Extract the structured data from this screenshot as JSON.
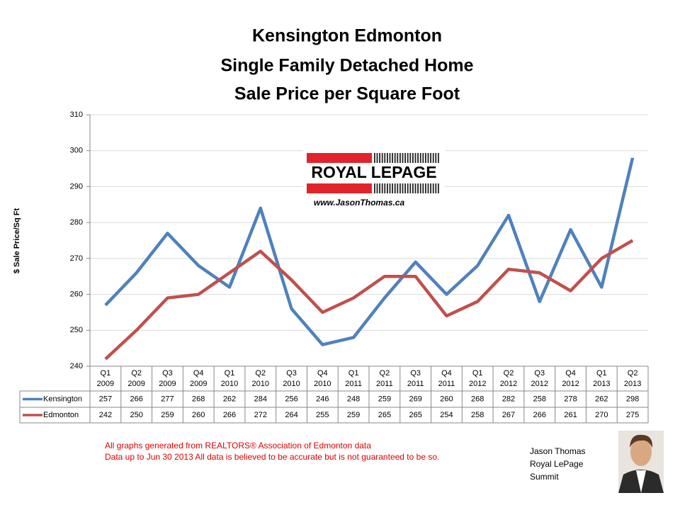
{
  "chart_data": {
    "type": "line",
    "title": [
      "Kensington Edmonton",
      "Single Family Detached Home",
      "Sale Price per Square Foot"
    ],
    "y_label": "$ Sale Price/Sq Ft",
    "categories": [
      [
        "Q1",
        "2009"
      ],
      [
        "Q2",
        "2009"
      ],
      [
        "Q3",
        "2009"
      ],
      [
        "Q4",
        "2009"
      ],
      [
        "Q1",
        "2010"
      ],
      [
        "Q2",
        "2010"
      ],
      [
        "Q3",
        "2010"
      ],
      [
        "Q4",
        "2010"
      ],
      [
        "Q1",
        "2011"
      ],
      [
        "Q2",
        "2011"
      ],
      [
        "Q3",
        "2011"
      ],
      [
        "Q4",
        "2011"
      ],
      [
        "Q1",
        "2012"
      ],
      [
        "Q2",
        "2012"
      ],
      [
        "Q3",
        "2012"
      ],
      [
        "Q4",
        "2012"
      ],
      [
        "Q1",
        "2013"
      ],
      [
        "Q2",
        "2013"
      ]
    ],
    "series": [
      {
        "name": "Kensington",
        "color": "#4f81bd",
        "values": [
          257,
          266,
          277,
          268,
          262,
          284,
          256,
          246,
          248,
          259,
          269,
          260,
          268,
          282,
          258,
          278,
          262,
          298
        ]
      },
      {
        "name": "Edmonton",
        "color": "#c0504d",
        "values": [
          242,
          250,
          259,
          260,
          266,
          272,
          264,
          255,
          259,
          265,
          265,
          254,
          258,
          267,
          266,
          261,
          270,
          275
        ]
      }
    ],
    "ylim": [
      240,
      310
    ],
    "yticks": [
      240,
      250,
      260,
      270,
      280,
      290,
      300,
      310
    ],
    "grid": true
  },
  "logo": {
    "brand": "ROYAL LEPAGE",
    "url": "www.JasonThomas.ca"
  },
  "notes": [
    "All graphs generated from REALTORS® Association of Edmonton data",
    "Data up to  Jun 30 2013  All data is believed to be accurate but is not guaranteed to be so."
  ],
  "signature": [
    "Jason Thomas",
    "Royal LePage",
    "Summit"
  ]
}
